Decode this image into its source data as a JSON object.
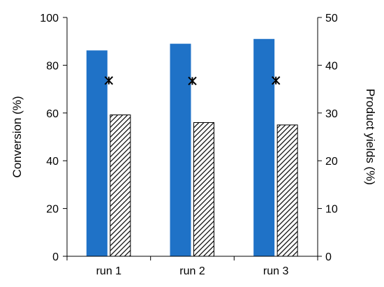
{
  "chart_data": {
    "type": "bar",
    "categories": [
      "run 1",
      "run 2",
      "run 3"
    ],
    "y_left": {
      "label": "Conversion (%)",
      "lim": [
        0,
        100
      ],
      "ticks": [
        0,
        20,
        40,
        60,
        80,
        100
      ]
    },
    "y_right": {
      "label": "Product yields (%)",
      "lim": [
        0,
        50
      ],
      "ticks": [
        0,
        10,
        20,
        30,
        40,
        50
      ]
    },
    "series": [
      {
        "axis": "left",
        "kind": "bar",
        "fill": "solid",
        "color": "#1f72c7",
        "values": [
          86.2,
          89.0,
          91.0
        ]
      },
      {
        "axis": "right",
        "kind": "bar",
        "fill": "hatched",
        "color": "#000000",
        "values": [
          29.6,
          28.0,
          27.5
        ]
      },
      {
        "axis": "right",
        "kind": "marker",
        "marker": "asterisk",
        "color": "#000000",
        "values": [
          36.8,
          36.7,
          36.8
        ]
      }
    ],
    "grid": false,
    "legend": "none"
  }
}
